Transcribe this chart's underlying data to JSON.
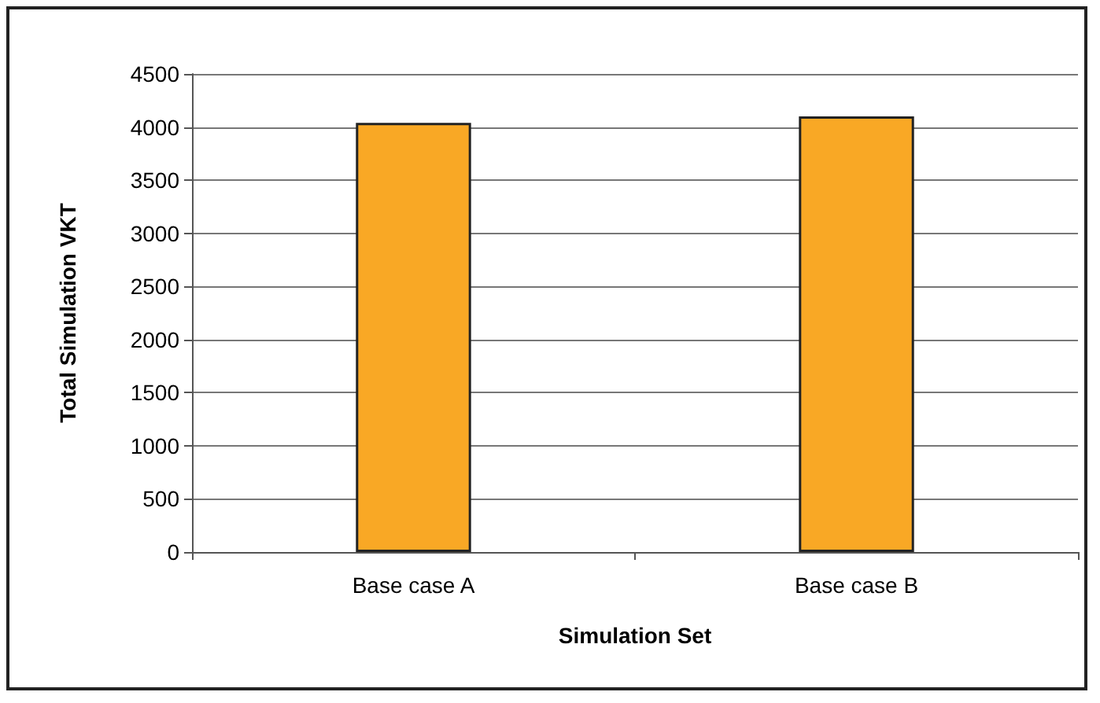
{
  "chart_data": {
    "type": "bar",
    "xlabel": "Simulation Set",
    "ylabel": "Total Simulation VKT",
    "categories": [
      "Base case A",
      "Base case B"
    ],
    "values": [
      4040,
      4100
    ],
    "color": "#f9a825",
    "ylim": [
      0,
      4500
    ],
    "yticks": [
      0,
      500,
      1000,
      1500,
      2000,
      2500,
      3000,
      3500,
      4000,
      4500
    ],
    "grid": "y"
  }
}
